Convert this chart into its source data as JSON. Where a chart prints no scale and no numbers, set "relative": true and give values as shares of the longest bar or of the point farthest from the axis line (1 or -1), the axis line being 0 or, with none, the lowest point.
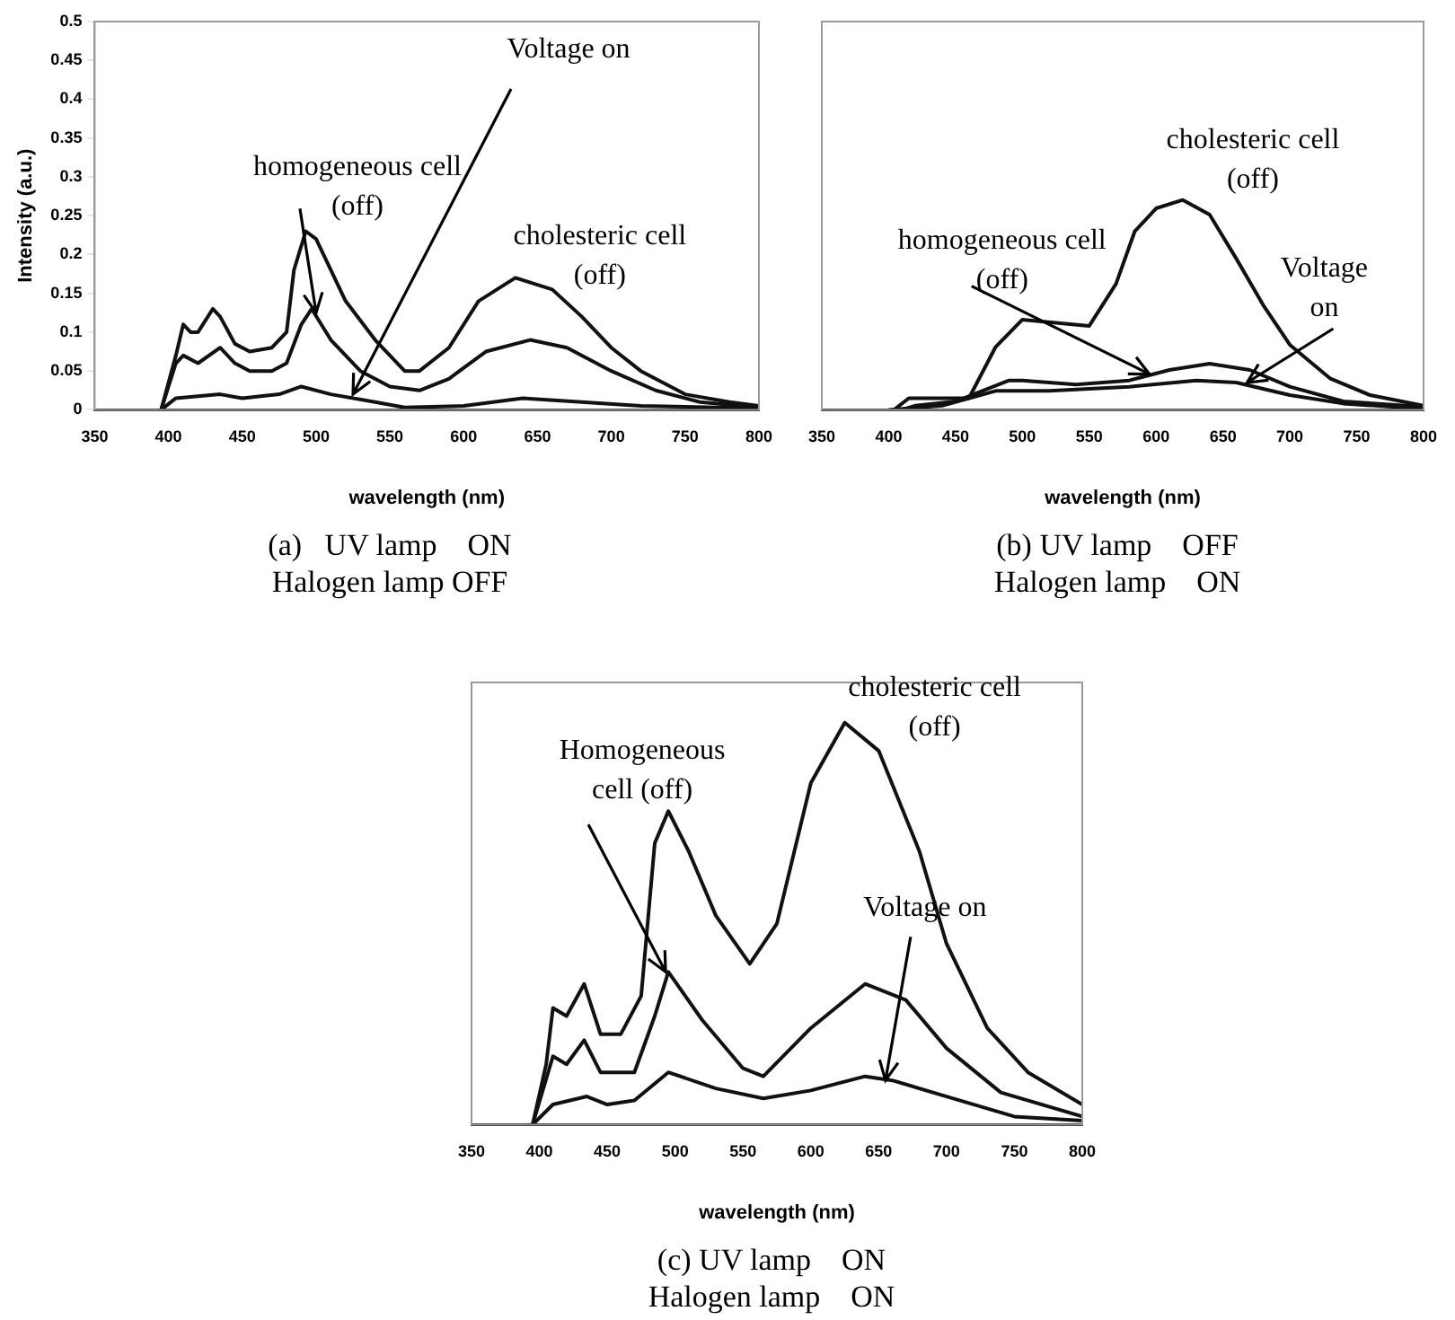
{
  "chart_data": [
    {
      "type": "line",
      "title": "(a)   UV lamp    ON\nHalogen lamp OFF",
      "xlabel": "wavelength (nm)",
      "ylabel": "Intensity (a.u.)",
      "xlim": [
        350,
        800
      ],
      "xticks": [
        350,
        400,
        450,
        500,
        550,
        600,
        650,
        700,
        750,
        800
      ],
      "ylim": [
        0,
        0.5
      ],
      "yticks": [
        0,
        0.05,
        0.1,
        0.15,
        0.2,
        0.25,
        0.3,
        0.35,
        0.4,
        0.45,
        0.5
      ],
      "marker": "none",
      "line_style": "solid",
      "grid": false,
      "series": [
        {
          "color": "#111111",
          "x": [
            395,
            405,
            410,
            415,
            420,
            430,
            435,
            445,
            455,
            470,
            480,
            485,
            493,
            500,
            520,
            540,
            560,
            570,
            590,
            610,
            635,
            660,
            680,
            700,
            720,
            750,
            780,
            800
          ],
          "values": [
            0,
            0.07,
            0.11,
            0.1,
            0.1,
            0.13,
            0.12,
            0.085,
            0.075,
            0.08,
            0.1,
            0.18,
            0.23,
            0.22,
            0.14,
            0.09,
            0.05,
            0.05,
            0.08,
            0.14,
            0.17,
            0.155,
            0.12,
            0.08,
            0.05,
            0.02,
            0.01,
            0.005
          ]
        },
        {
          "color": "#111111",
          "x": [
            395,
            405,
            410,
            420,
            435,
            445,
            455,
            470,
            480,
            490,
            497,
            510,
            530,
            550,
            570,
            590,
            615,
            645,
            670,
            700,
            730,
            760,
            800
          ],
          "values": [
            0,
            0.06,
            0.07,
            0.06,
            0.08,
            0.06,
            0.05,
            0.05,
            0.06,
            0.11,
            0.13,
            0.09,
            0.05,
            0.03,
            0.025,
            0.04,
            0.075,
            0.09,
            0.08,
            0.05,
            0.025,
            0.01,
            0.003
          ]
        },
        {
          "color": "#111111",
          "x": [
            395,
            405,
            435,
            450,
            475,
            490,
            510,
            540,
            560,
            600,
            640,
            680,
            720,
            800
          ],
          "values": [
            0,
            0.015,
            0.02,
            0.015,
            0.02,
            0.03,
            0.02,
            0.01,
            0.003,
            0.005,
            0.015,
            0.01,
            0.005,
            0.002
          ]
        }
      ],
      "annotations": [
        {
          "text": "homogeneous cell\n(off)",
          "x": 500,
          "y": 0.125
        },
        {
          "text": "Voltage on",
          "x": 525,
          "y": 0.02
        },
        {
          "text": "cholesteric cell\n(off)",
          "x": 635,
          "y": 0.17
        }
      ]
    },
    {
      "type": "line",
      "title": "(b) UV lamp    OFF\nHalogen lamp    ON",
      "xlabel": "wavelength (nm)",
      "relative": true,
      "tick_labels": "x",
      "xlim": [
        350,
        800
      ],
      "xticks": [
        350,
        400,
        450,
        500,
        550,
        600,
        650,
        700,
        750,
        800
      ],
      "marker": "none",
      "line_style": "solid",
      "grid": false,
      "series": [
        {
          "color": "#111111",
          "x": [
            404,
            415,
            460,
            480,
            500,
            550,
            570,
            584,
            600,
            620,
            640,
            660,
            680,
            700,
            730,
            760,
            800
          ],
          "values": [
            0,
            0.055,
            0.055,
            0.3,
            0.43,
            0.4,
            0.6,
            0.85,
            0.96,
            1,
            0.93,
            0.72,
            0.5,
            0.31,
            0.15,
            0.07,
            0.02
          ]
        },
        {
          "color": "#111111",
          "x": [
            410,
            420,
            450,
            490,
            500,
            540,
            580,
            610,
            640,
            670,
            700,
            740,
            800
          ],
          "values": [
            0,
            0.02,
            0.04,
            0.14,
            0.14,
            0.12,
            0.14,
            0.19,
            0.22,
            0.19,
            0.11,
            0.04,
            0.015
          ]
        },
        {
          "color": "#111111",
          "x": [
            400,
            440,
            480,
            520,
            580,
            630,
            660,
            700,
            740,
            800
          ],
          "values": [
            0,
            0.02,
            0.09,
            0.09,
            0.11,
            0.14,
            0.13,
            0.07,
            0.03,
            0.005
          ]
        }
      ],
      "annotations": [
        {
          "text": "cholesteric cell\n(off)",
          "x": 620,
          "y": 1
        },
        {
          "text": "homogeneous cell\n(off)",
          "x": 595,
          "y": 0.17
        },
        {
          "text": "Voltage\non",
          "x": 668,
          "y": 0.13
        }
      ]
    },
    {
      "type": "line",
      "title": "(c) UV lamp    ON\nHalogen lamp    ON",
      "xlabel": "wavelength (nm)",
      "relative": true,
      "tick_labels": "x",
      "xlim": [
        350,
        800
      ],
      "xticks": [
        350,
        400,
        450,
        500,
        550,
        600,
        650,
        700,
        750,
        800
      ],
      "marker": "none",
      "line_style": "solid",
      "grid": false,
      "series": [
        {
          "color": "#111111",
          "x": [
            395,
            405,
            410,
            420,
            433,
            445,
            460,
            475,
            485,
            495,
            510,
            530,
            555,
            575,
            600,
            625,
            650,
            680,
            700,
            730,
            760,
            800
          ],
          "values": [
            0,
            0.15,
            0.29,
            0.27,
            0.35,
            0.225,
            0.225,
            0.32,
            0.7,
            0.78,
            0.68,
            0.52,
            0.4,
            0.5,
            0.85,
            1,
            0.93,
            0.68,
            0.45,
            0.24,
            0.13,
            0.05
          ]
        },
        {
          "color": "#111111",
          "x": [
            395,
            410,
            420,
            433,
            445,
            470,
            485,
            495,
            520,
            550,
            565,
            600,
            640,
            670,
            700,
            740,
            800
          ],
          "values": [
            0,
            0.17,
            0.15,
            0.21,
            0.13,
            0.13,
            0.27,
            0.38,
            0.26,
            0.14,
            0.12,
            0.24,
            0.35,
            0.31,
            0.19,
            0.08,
            0.02
          ]
        },
        {
          "color": "#111111",
          "x": [
            395,
            410,
            435,
            450,
            470,
            495,
            530,
            565,
            600,
            640,
            660,
            700,
            750,
            800
          ],
          "values": [
            0,
            0.05,
            0.07,
            0.05,
            0.06,
            0.13,
            0.09,
            0.065,
            0.085,
            0.12,
            0.11,
            0.07,
            0.02,
            0.01
          ]
        }
      ],
      "annotations": [
        {
          "text": "Homogeneous\ncell (off)",
          "x": 493,
          "y": 0.38
        },
        {
          "text": "cholesteric cell\n(off)",
          "x": 625,
          "y": 1
        },
        {
          "text": "Voltage on",
          "x": 655,
          "y": 0.11
        }
      ]
    }
  ]
}
